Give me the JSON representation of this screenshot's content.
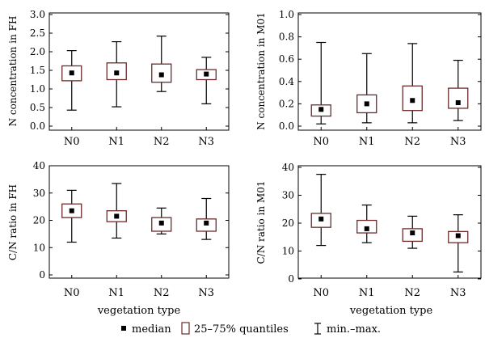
{
  "chart_data": [
    {
      "type": "boxplot",
      "ylabel": "N concentration in FH",
      "xlabel": "",
      "ylim": [
        0,
        3.0
      ],
      "yticks": [
        "0.0",
        "0.5",
        "1.0",
        "1.5",
        "2.0",
        "2.5",
        "3.0"
      ],
      "categories": [
        "N0",
        "N1",
        "N2",
        "N3"
      ],
      "boxes": [
        {
          "min": 0.43,
          "q1": 1.22,
          "median": 1.43,
          "q3": 1.62,
          "max": 2.03
        },
        {
          "min": 0.52,
          "q1": 1.25,
          "median": 1.43,
          "q3": 1.7,
          "max": 2.27
        },
        {
          "min": 0.93,
          "q1": 1.18,
          "median": 1.38,
          "q3": 1.67,
          "max": 2.42
        },
        {
          "min": 0.6,
          "q1": 1.25,
          "median": 1.4,
          "q3": 1.52,
          "max": 1.85
        }
      ]
    },
    {
      "type": "boxplot",
      "ylabel": "N concentration in M01",
      "xlabel": "",
      "ylim": [
        0,
        1.0
      ],
      "yticks": [
        "0.0",
        "0.2",
        "0.4",
        "0.6",
        "0.8",
        "1.0"
      ],
      "categories": [
        "N0",
        "N1",
        "N2",
        "N3"
      ],
      "boxes": [
        {
          "min": 0.02,
          "q1": 0.09,
          "median": 0.15,
          "q3": 0.19,
          "max": 0.75
        },
        {
          "min": 0.03,
          "q1": 0.12,
          "median": 0.2,
          "q3": 0.28,
          "max": 0.65
        },
        {
          "min": 0.03,
          "q1": 0.14,
          "median": 0.23,
          "q3": 0.36,
          "max": 0.74
        },
        {
          "min": 0.05,
          "q1": 0.16,
          "median": 0.21,
          "q3": 0.34,
          "max": 0.59
        }
      ]
    },
    {
      "type": "boxplot",
      "ylabel": "C/N ratio in FH",
      "xlabel": "vegetation type",
      "ylim": [
        0,
        40
      ],
      "yticks": [
        "0",
        "10",
        "20",
        "30",
        "40"
      ],
      "categories": [
        "N0",
        "N1",
        "N2",
        "N3"
      ],
      "boxes": [
        {
          "min": 12,
          "q1": 21,
          "median": 23.5,
          "q3": 26,
          "max": 31
        },
        {
          "min": 13.5,
          "q1": 19.5,
          "median": 21.5,
          "q3": 23.5,
          "max": 33.5
        },
        {
          "min": 15,
          "q1": 16,
          "median": 19,
          "q3": 21,
          "max": 24.5
        },
        {
          "min": 13,
          "q1": 16,
          "median": 19,
          "q3": 20.5,
          "max": 28
        }
      ]
    },
    {
      "type": "boxplot",
      "ylabel": "C/N ratio in M01",
      "xlabel": "vegetation type",
      "ylim": [
        0,
        40
      ],
      "yticks": [
        "0",
        "10",
        "20",
        "30",
        "40"
      ],
      "categories": [
        "N0",
        "N1",
        "N2",
        "N3"
      ],
      "boxes": [
        {
          "min": 12,
          "q1": 18.5,
          "median": 21.5,
          "q3": 23.5,
          "max": 37.5
        },
        {
          "min": 13,
          "q1": 16.5,
          "median": 18,
          "q3": 21,
          "max": 26.5
        },
        {
          "min": 11,
          "q1": 13.5,
          "median": 16.5,
          "q3": 18,
          "max": 22.5
        },
        {
          "min": 2.5,
          "q1": 13,
          "median": 15.5,
          "q3": 17,
          "max": 23
        }
      ]
    }
  ],
  "legend": {
    "median_label": "median",
    "quantile_label": "25–75% quantiles",
    "range_label": "min.–max.",
    "box_edge_color": "#6b2b2b"
  }
}
